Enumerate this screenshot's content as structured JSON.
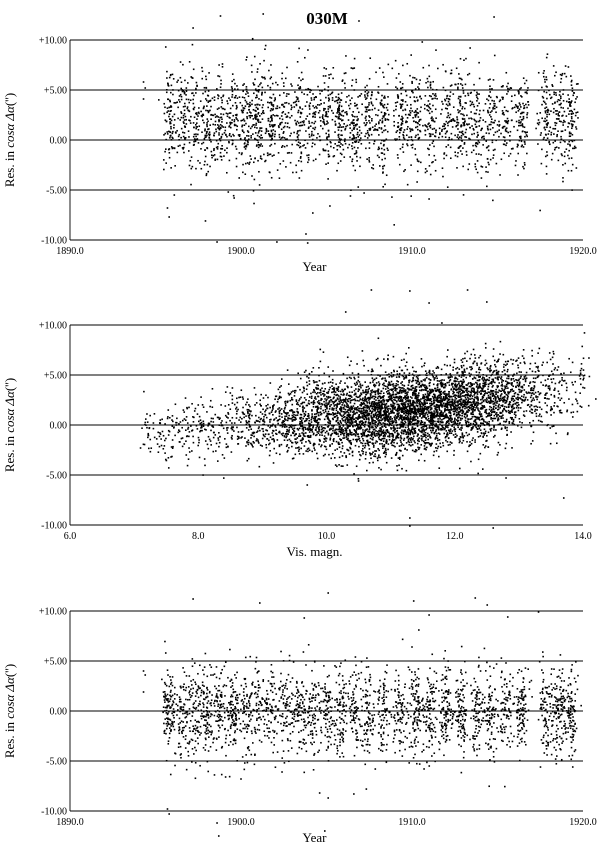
{
  "title": "030M",
  "chart_data": [
    {
      "type": "scatter",
      "title": "030M",
      "xlabel": "Year",
      "ylabel_prefix": "Res. in ",
      "ylabel_math": "cosα Δα",
      "ylabel_suffix": "('')",
      "xlim": [
        1890.0,
        1920.0
      ],
      "ylim": [
        -10.0,
        10.0
      ],
      "xticks": [
        1890.0,
        1900.0,
        1910.0,
        1920.0
      ],
      "xtick_labels": [
        "1890.0",
        "1900.0",
        "1910.0",
        "1920.0"
      ],
      "yticks": [
        10.0,
        5.0,
        0.0,
        -5.0,
        -10.0
      ],
      "ytick_labels": [
        "+10.00",
        "+5.00",
        "0.00",
        "-5.00",
        "-10.00"
      ],
      "grid": "horizontal lines at y ticks",
      "marker_color": "#000000",
      "x_extent_observed": [
        1894.3,
        1919.4
      ],
      "y_center_observed": 2.0,
      "y_spread_observed": 2.5,
      "clusters_x_observed": [
        1895.8,
        1896.6,
        1897.3,
        1898.0,
        1898.8,
        1899.5,
        1900.3,
        1901.0,
        1901.8,
        1902.6,
        1903.4,
        1904.2,
        1905.0,
        1905.8,
        1906.6,
        1907.4,
        1908.3,
        1909.3,
        1910.2,
        1911.1,
        1912.0,
        1912.9,
        1913.8,
        1914.6,
        1915.5,
        1916.4,
        1917.8,
        1918.6,
        1919.3
      ],
      "sample_points": [
        [
          1894.3,
          5.8
        ],
        [
          1894.4,
          5.2
        ],
        [
          1894.3,
          4.1
        ],
        [
          1895.7,
          -6.8
        ],
        [
          1895.8,
          -7.7
        ],
        [
          1895.6,
          9.3
        ],
        [
          1898.6,
          -10.2
        ],
        [
          1899.6,
          -5.8
        ],
        [
          1902.1,
          -10.2
        ],
        [
          1903.8,
          -9.4
        ],
        [
          1903.9,
          -10.3
        ],
        [
          1904.2,
          -7.3
        ],
        [
          1905.2,
          -6.6
        ],
        [
          1906.4,
          -5.6
        ],
        [
          1910.3,
          -4.2
        ],
        [
          1911.0,
          -5.9
        ],
        [
          1907.2,
          -5.3
        ],
        [
          1916.2,
          -3.5
        ],
        [
          1913.4,
          9.2
        ],
        [
          1910.6,
          9.8
        ],
        [
          1897.2,
          11.2
        ],
        [
          1906.9,
          11.9
        ],
        [
          1901.3,
          12.6
        ],
        [
          1914.8,
          12.3
        ],
        [
          1898.8,
          12.4
        ]
      ]
    },
    {
      "type": "scatter",
      "xlabel": "Vis. magn.",
      "ylabel_prefix": "Res. in ",
      "ylabel_math": "cosα Δα",
      "ylabel_suffix": "('')",
      "xlim": [
        6.0,
        14.0
      ],
      "ylim": [
        -10.0,
        10.0
      ],
      "xticks": [
        6.0,
        8.0,
        10.0,
        12.0,
        14.0
      ],
      "xtick_labels": [
        "6.0",
        "8.0",
        "10.0",
        "12.0",
        "14.0"
      ],
      "yticks": [
        10.0,
        5.0,
        0.0,
        -5.0,
        -10.0
      ],
      "ytick_labels": [
        "+10.00",
        "+5.00",
        "0.00",
        "-5.00",
        "-10.00"
      ],
      "grid": "horizontal lines at y ticks",
      "marker_color": "#000000",
      "x_extent_observed": [
        7.1,
        14.2
      ],
      "trend_observed": [
        [
          7.5,
          -0.8
        ],
        [
          9.5,
          0.6
        ],
        [
          10.5,
          0.9
        ],
        [
          11.5,
          1.6
        ],
        [
          12.5,
          2.5
        ],
        [
          13.5,
          3.6
        ]
      ],
      "sample_points": [
        [
          7.1,
          -2.3
        ],
        [
          7.2,
          1.1
        ],
        [
          7.4,
          0.2
        ],
        [
          7.6,
          -1.5
        ],
        [
          7.9,
          -2.6
        ],
        [
          8.0,
          2.0
        ],
        [
          8.1,
          -3.4
        ],
        [
          8.5,
          3.2
        ],
        [
          8.7,
          2.6
        ],
        [
          9.3,
          -0.9
        ],
        [
          9.7,
          -6.0
        ],
        [
          10.5,
          -5.6
        ],
        [
          11.3,
          -9.3
        ],
        [
          11.3,
          -10.1
        ],
        [
          12.6,
          -10.3
        ],
        [
          12.8,
          -5.3
        ],
        [
          13.7,
          -7.3
        ],
        [
          11.8,
          10.2
        ],
        [
          12.2,
          13.5
        ],
        [
          11.3,
          13.4
        ],
        [
          10.7,
          13.5
        ],
        [
          11.6,
          12.2
        ],
        [
          12.5,
          12.3
        ],
        [
          10.3,
          11.3
        ],
        [
          14.2,
          2.6
        ]
      ]
    },
    {
      "type": "scatter",
      "xlabel": "Year",
      "ylabel_prefix": "Res. in ",
      "ylabel_math": "cosα Δα",
      "ylabel_suffix": "('')",
      "xlim": [
        1890.0,
        1920.0
      ],
      "ylim": [
        -10.0,
        10.0
      ],
      "xticks": [
        1890.0,
        1900.0,
        1910.0,
        1920.0
      ],
      "xtick_labels": [
        "1890.0",
        "1900.0",
        "1910.0",
        "1920.0"
      ],
      "yticks": [
        10.0,
        5.0,
        0.0,
        -5.0,
        -10.0
      ],
      "ytick_labels": [
        "+10.00",
        "+5.00",
        "0.00",
        "-5.00",
        "-10.00"
      ],
      "grid": "horizontal lines at y ticks",
      "marker_color": "#000000",
      "x_extent_observed": [
        1894.3,
        1919.4
      ],
      "y_center_observed": 0.0,
      "y_spread_observed": 2.2,
      "clusters_x_observed": [
        1895.8,
        1896.6,
        1897.3,
        1898.0,
        1898.8,
        1899.5,
        1900.3,
        1901.0,
        1901.8,
        1902.6,
        1903.4,
        1904.2,
        1905.0,
        1905.8,
        1906.6,
        1907.4,
        1908.3,
        1909.3,
        1910.2,
        1911.1,
        1912.0,
        1912.9,
        1913.8,
        1914.6,
        1915.5,
        1916.4,
        1917.8,
        1918.6,
        1919.3
      ],
      "sample_points": [
        [
          1894.3,
          4.0
        ],
        [
          1894.4,
          3.6
        ],
        [
          1894.3,
          1.9
        ],
        [
          1895.7,
          -9.8
        ],
        [
          1895.8,
          -10.3
        ],
        [
          1895.6,
          5.8
        ],
        [
          1897.2,
          11.2
        ],
        [
          1898.6,
          -11.2
        ],
        [
          1898.7,
          -12.5
        ],
        [
          1899.1,
          -6.6
        ],
        [
          1900.0,
          -6.8
        ],
        [
          1902.4,
          -6.1
        ],
        [
          1904.6,
          -8.2
        ],
        [
          1904.9,
          -12.0
        ],
        [
          1905.1,
          -8.7
        ],
        [
          1906.6,
          -8.3
        ],
        [
          1910.1,
          11.0
        ],
        [
          1910.0,
          6.4
        ],
        [
          1910.4,
          8.1
        ],
        [
          1911.0,
          9.6
        ],
        [
          1905.1,
          11.8
        ],
        [
          1913.7,
          11.3
        ],
        [
          1914.4,
          10.6
        ],
        [
          1915.6,
          9.4
        ],
        [
          1901.1,
          10.8
        ],
        [
          1903.7,
          9.3
        ],
        [
          1917.4,
          9.9
        ]
      ]
    }
  ]
}
